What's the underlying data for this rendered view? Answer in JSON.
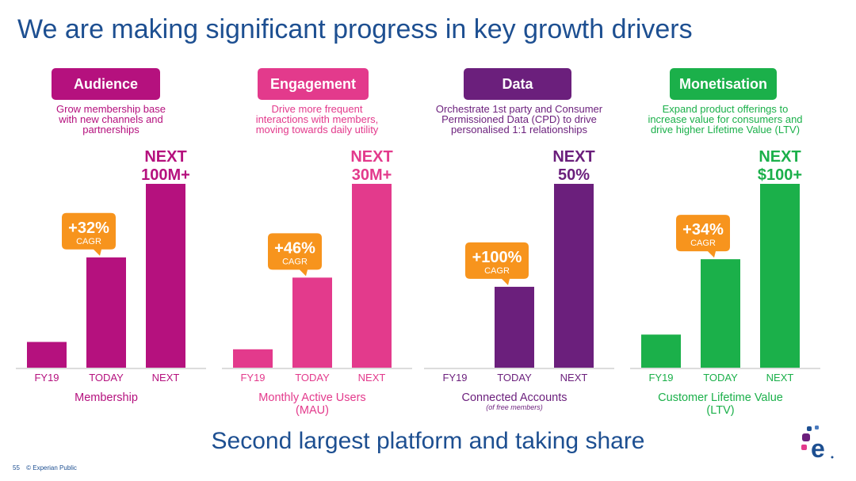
{
  "slide": {
    "title": "We are making significant progress in key growth drivers",
    "footer": "Second largest platform and taking share",
    "page_number": "55",
    "classification": "© Experian Public"
  },
  "colors": {
    "title_blue": "#1d4f91",
    "callout_orange": "#f7941d",
    "axis_line": "#dcdcdc"
  },
  "chart_data": [
    {
      "type": "bar",
      "pill": "Audience",
      "color": "#b5117e",
      "description": [
        "Grow membership base",
        "with new channels and",
        "partnerships"
      ],
      "categories": [
        "FY19",
        "TODAY",
        "NEXT"
      ],
      "values": [
        0.14,
        0.6,
        1.0
      ],
      "xlabel": [
        "Membership"
      ],
      "next_label": [
        "NEXT",
        "100M+"
      ],
      "callout": {
        "value": "+32%",
        "label": "CAGR"
      }
    },
    {
      "type": "bar",
      "pill": "Engagement",
      "color": "#e33a8c",
      "description": [
        "Drive more frequent",
        "interactions with members,",
        "moving towards daily utility"
      ],
      "categories": [
        "FY19",
        "TODAY",
        "NEXT"
      ],
      "values": [
        0.1,
        0.49,
        1.0
      ],
      "xlabel": [
        "Monthly Active Users",
        "(MAU)"
      ],
      "next_label": [
        "NEXT",
        "30M+"
      ],
      "callout": {
        "value": "+46%",
        "label": "CAGR"
      }
    },
    {
      "type": "bar",
      "pill": "Data",
      "color": "#6b1f7c",
      "description": [
        "Orchestrate 1st party and Consumer",
        "Permissioned Data (CPD) to drive",
        "personalised 1:1 relationships"
      ],
      "categories": [
        "FY19",
        "TODAY",
        "NEXT"
      ],
      "values": [
        0.0,
        0.44,
        1.0
      ],
      "xlabel": [
        "Connected Accounts"
      ],
      "xlabel_note": "(of free members)",
      "next_label": [
        "NEXT",
        "50%"
      ],
      "callout": {
        "value": "+100%",
        "label": "CAGR"
      }
    },
    {
      "type": "bar",
      "pill": "Monetisation",
      "color": "#1bb04a",
      "description": [
        "Expand product offerings to",
        "increase value for consumers and",
        "drive higher Lifetime Value (LTV)"
      ],
      "categories": [
        "FY19",
        "TODAY",
        "NEXT"
      ],
      "values": [
        0.18,
        0.59,
        1.0
      ],
      "xlabel": [
        "Customer Lifetime Value",
        "(LTV)"
      ],
      "next_label": [
        "NEXT",
        "$100+"
      ],
      "callout": {
        "value": "+34%",
        "label": "CAGR"
      }
    }
  ]
}
